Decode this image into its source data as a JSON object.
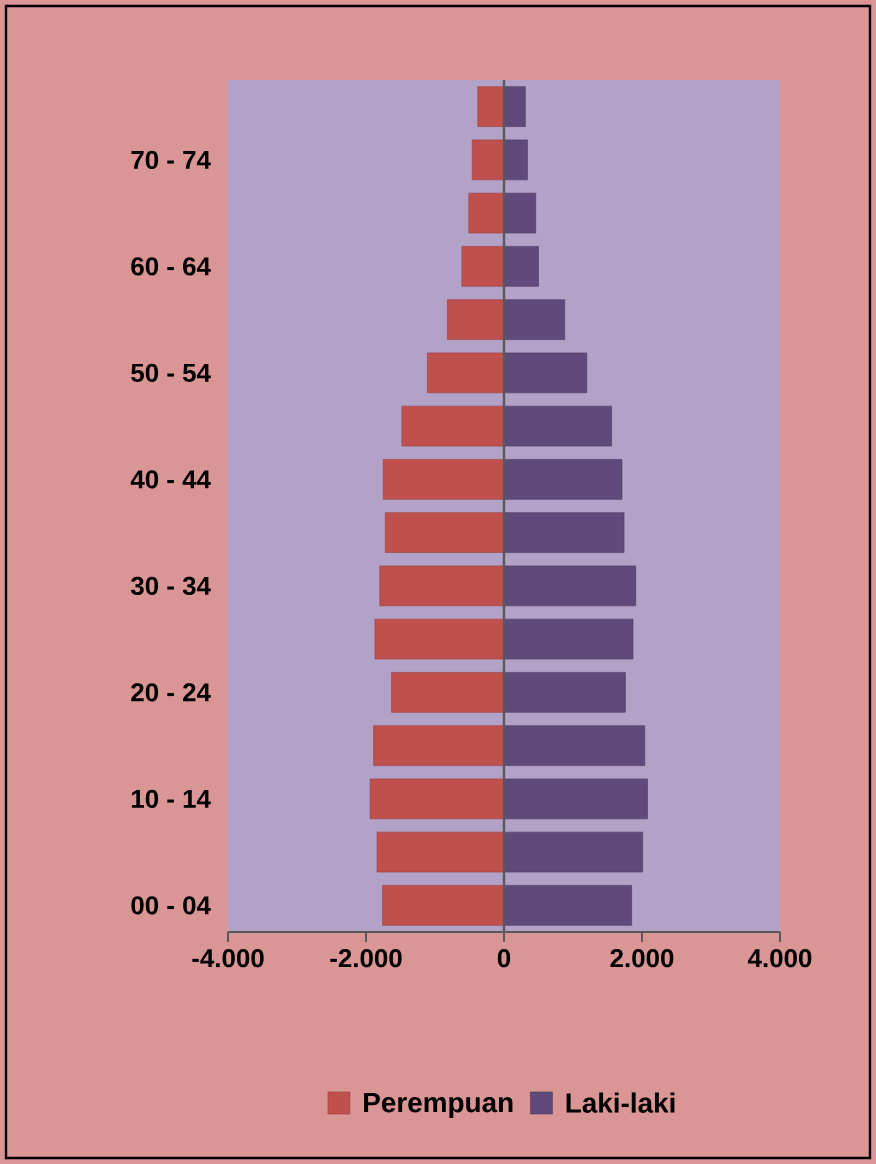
{
  "chart_data": {
    "type": "bar",
    "orientation": "horizontal",
    "categories": [
      null,
      "70 - 74",
      null,
      "60 - 64",
      null,
      "50 - 54",
      null,
      "40 - 44",
      null,
      "30 - 34",
      null,
      "20 - 24",
      null,
      "10 - 14",
      null,
      "00 - 04"
    ],
    "series": [
      {
        "name": "Perempuan",
        "color": "#c0504d",
        "values": [
          -380,
          -460,
          -510,
          -610,
          -820,
          -1110,
          -1480,
          -1750,
          -1720,
          -1800,
          -1870,
          -1630,
          -1890,
          -1940,
          -1840,
          -1760
        ]
      },
      {
        "name": "Laki-laki",
        "color": "#604a7b",
        "values": [
          310,
          340,
          460,
          500,
          880,
          1200,
          1560,
          1710,
          1740,
          1910,
          1870,
          1760,
          2040,
          2080,
          2010,
          1850
        ]
      }
    ],
    "xlim": [
      -4000,
      4000
    ],
    "xticks": [
      {
        "value": -4000,
        "label": "-4.000"
      },
      {
        "value": -2000,
        "label": "-2.000"
      },
      0,
      {
        "value": 2000,
        "label": "2.000"
      },
      {
        "value": 4000,
        "label": "4.000"
      }
    ],
    "legend": "bottom",
    "stacked": true
  }
}
